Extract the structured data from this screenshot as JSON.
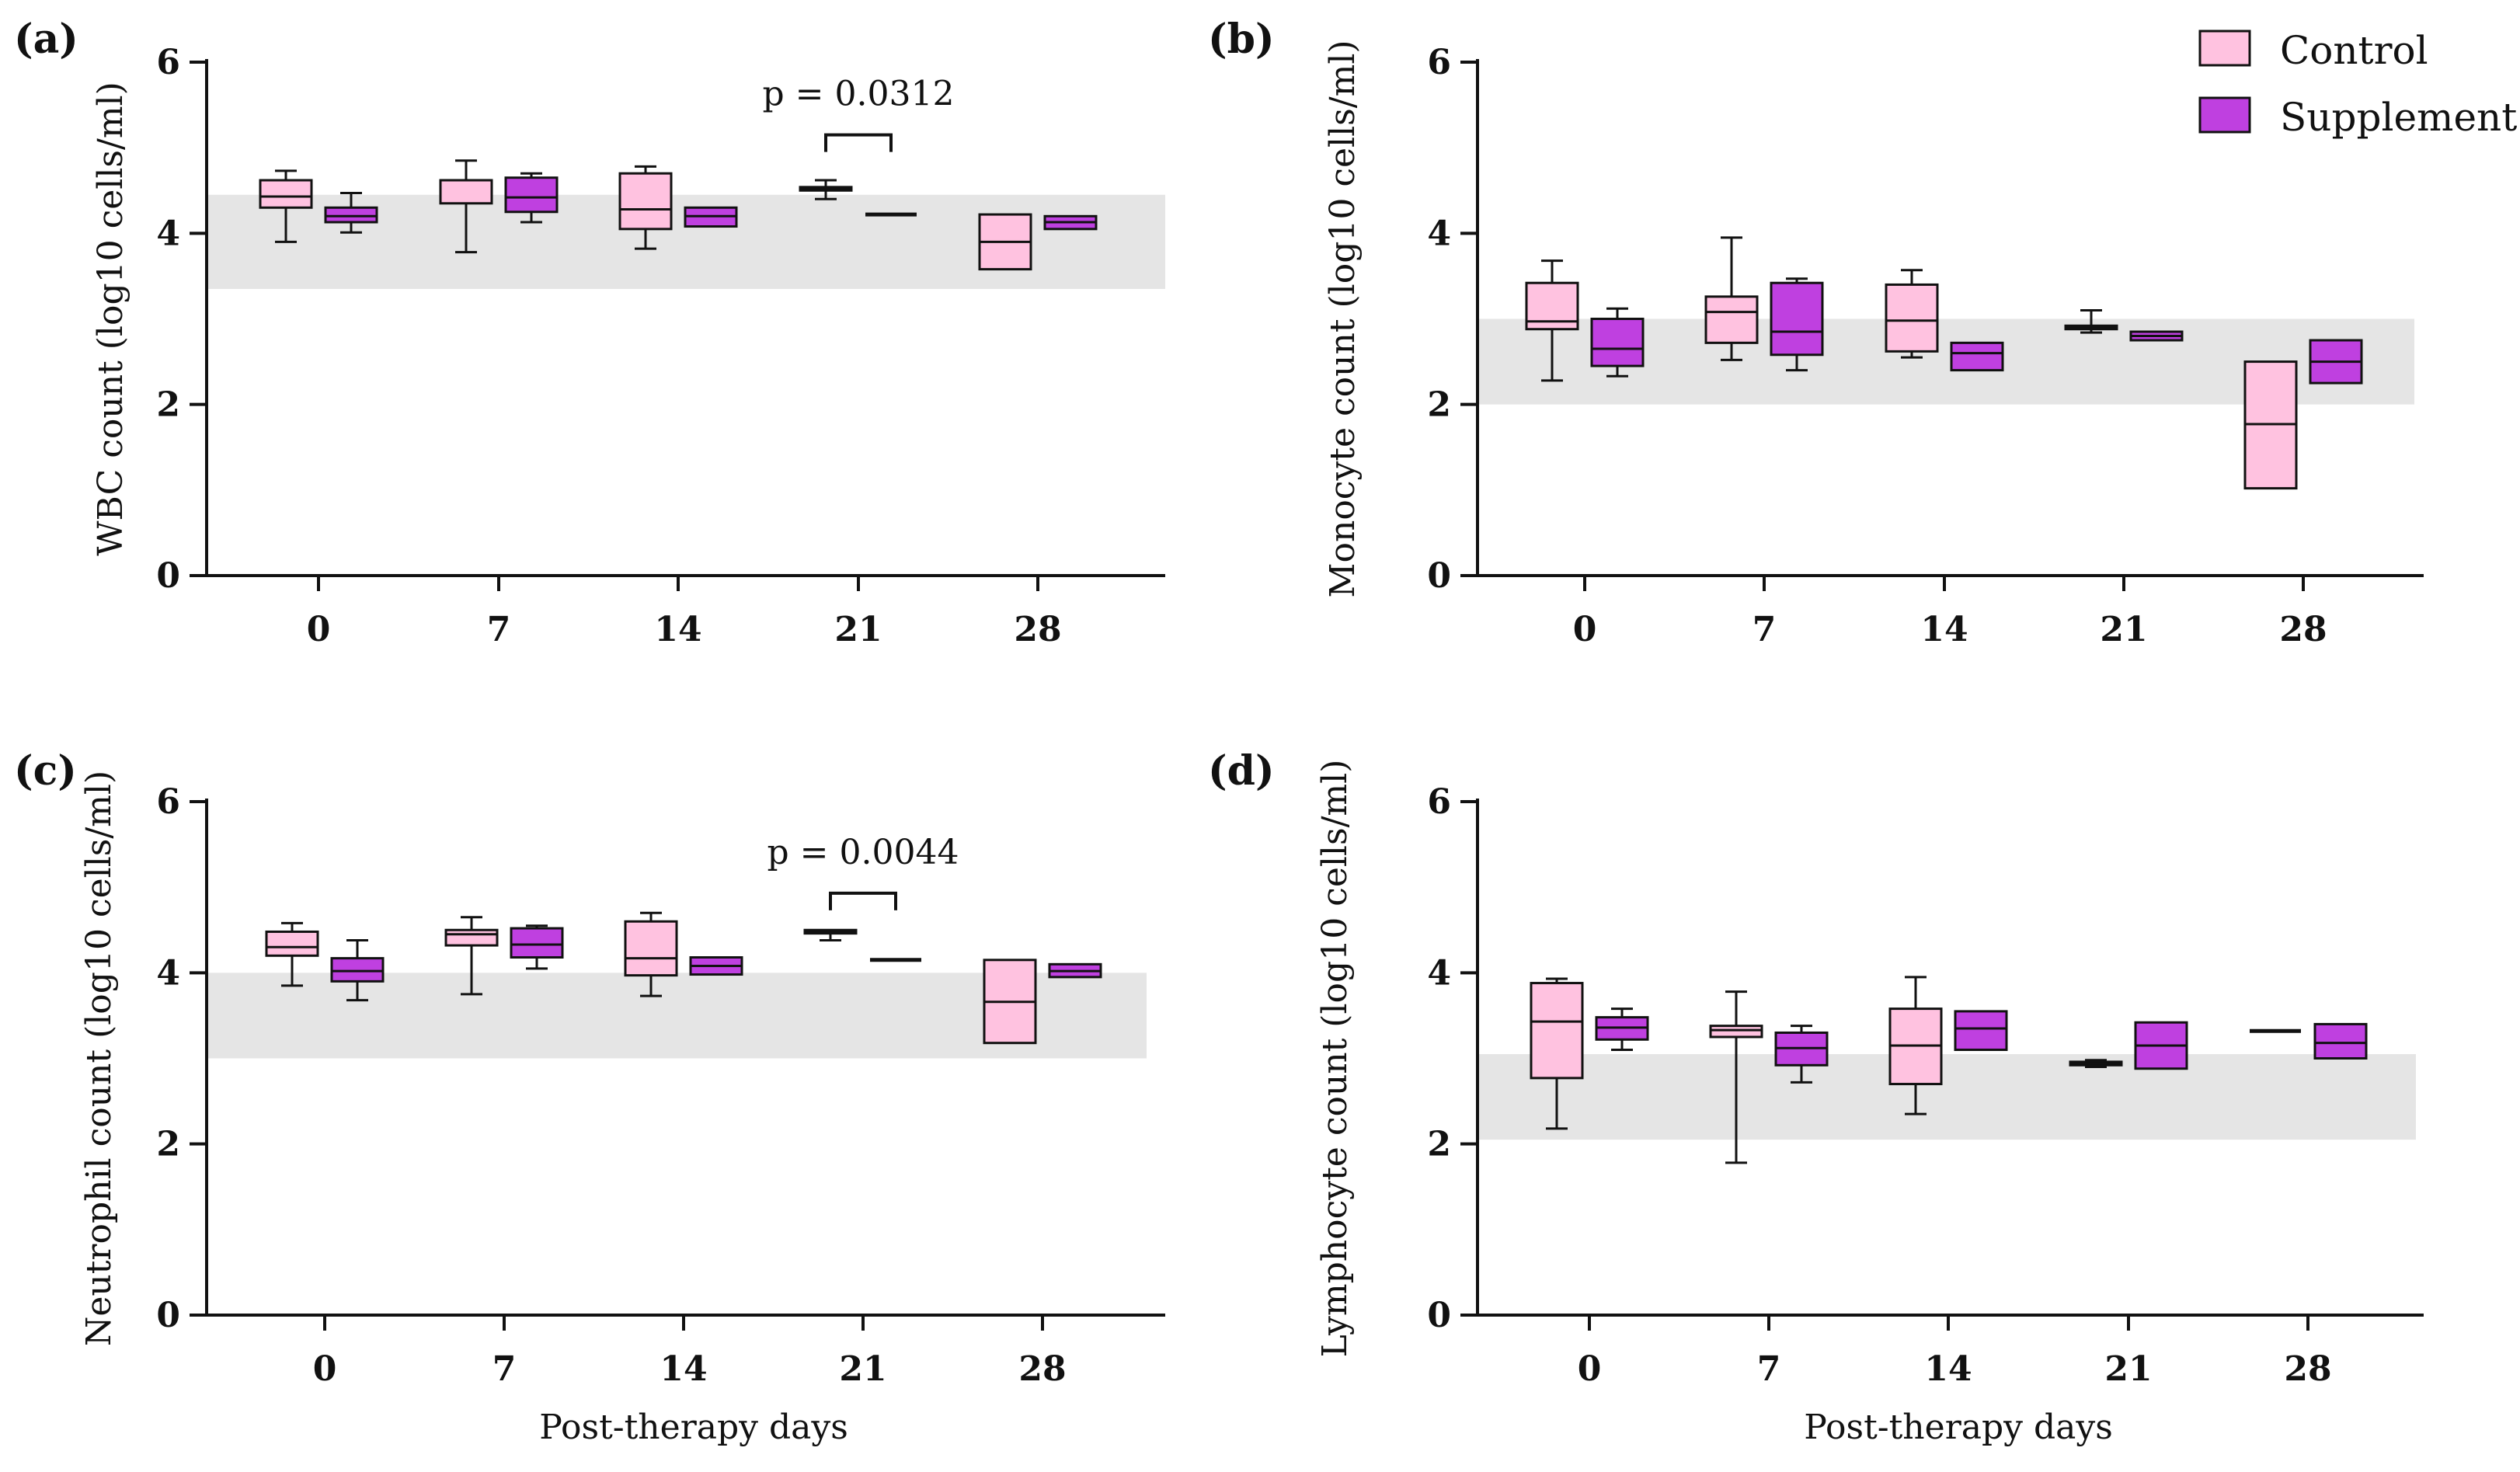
{
  "chart_data": [
    {
      "type": "box",
      "panel_label": "(a)",
      "ylabel": "WBC count (log10 cells/ml)",
      "xlabel": "",
      "categories": [
        "0",
        "7",
        "14",
        "21",
        "28"
      ],
      "ylim": [
        0,
        6
      ],
      "yticks": [
        "0",
        "2",
        "4",
        "6"
      ],
      "reference_band": [
        3.35,
        4.45
      ],
      "series": [
        {
          "name": "Control",
          "color": "#ffc2e0",
          "boxes": [
            {
              "min": 3.9,
              "q1": 4.3,
              "median": 4.43,
              "q3": 4.62,
              "max": 4.73
            },
            {
              "min": 3.78,
              "q1": 4.35,
              "median": 4.62,
              "q3": 4.62,
              "max": 4.85
            },
            {
              "min": 3.82,
              "q1": 4.05,
              "median": 4.28,
              "q3": 4.7,
              "max": 4.78
            },
            {
              "min": 4.4,
              "q1": 4.5,
              "median": 4.52,
              "q3": 4.54,
              "max": 4.62
            },
            {
              "min": 3.58,
              "q1": 3.58,
              "median": 3.9,
              "q3": 4.22,
              "max": 4.22
            }
          ]
        },
        {
          "name": "Supplement",
          "color": "#bf40e0",
          "boxes": [
            {
              "min": 4.01,
              "q1": 4.13,
              "median": 4.2,
              "q3": 4.3,
              "max": 4.47
            },
            {
              "min": 4.13,
              "q1": 4.25,
              "median": 4.42,
              "q3": 4.65,
              "max": 4.7
            },
            {
              "min": 4.08,
              "q1": 4.08,
              "median": 4.2,
              "q3": 4.3,
              "max": 4.3
            },
            {
              "min": 4.22,
              "q1": 4.22,
              "median": 4.22,
              "q3": 4.22,
              "max": 4.22
            },
            {
              "min": 4.05,
              "q1": 4.05,
              "median": 4.13,
              "q3": 4.2,
              "max": 4.2
            }
          ]
        }
      ],
      "annotation": {
        "category": "21",
        "text": "p = 0.0312",
        "y": 5.15
      }
    },
    {
      "type": "box",
      "panel_label": "(b)",
      "ylabel": "Monocyte count (log10 cells/ml)",
      "xlabel": "",
      "categories": [
        "0",
        "7",
        "14",
        "21",
        "28"
      ],
      "ylim": [
        0,
        6
      ],
      "yticks": [
        "0",
        "2",
        "4",
        "6"
      ],
      "reference_band": [
        2.0,
        3.0
      ],
      "series": [
        {
          "name": "Control",
          "color": "#ffc2e0",
          "boxes": [
            {
              "min": 2.28,
              "q1": 2.88,
              "median": 2.97,
              "q3": 3.42,
              "max": 3.68
            },
            {
              "min": 2.52,
              "q1": 2.72,
              "median": 3.08,
              "q3": 3.26,
              "max": 3.95
            },
            {
              "min": 2.55,
              "q1": 2.62,
              "median": 2.98,
              "q3": 3.4,
              "max": 3.57
            },
            {
              "min": 2.84,
              "q1": 2.88,
              "median": 2.9,
              "q3": 2.92,
              "max": 3.1
            },
            {
              "min": 1.02,
              "q1": 1.02,
              "median": 1.77,
              "q3": 2.5,
              "max": 2.5
            }
          ]
        },
        {
          "name": "Supplement",
          "color": "#bf40e0",
          "boxes": [
            {
              "min": 2.33,
              "q1": 2.45,
              "median": 2.65,
              "q3": 3.0,
              "max": 3.12
            },
            {
              "min": 2.4,
              "q1": 2.58,
              "median": 2.85,
              "q3": 3.42,
              "max": 3.47
            },
            {
              "min": 2.4,
              "q1": 2.4,
              "median": 2.6,
              "q3": 2.72,
              "max": 2.72
            },
            {
              "min": 2.75,
              "q1": 2.75,
              "median": 2.8,
              "q3": 2.85,
              "max": 2.85
            },
            {
              "min": 2.25,
              "q1": 2.25,
              "median": 2.5,
              "q3": 2.75,
              "max": 2.75
            }
          ]
        }
      ]
    },
    {
      "type": "box",
      "panel_label": "(c)",
      "ylabel": "Neutrophil count (log10 cells/ml)",
      "xlabel": "Post-therapy days",
      "categories": [
        "0",
        "7",
        "14",
        "21",
        "28"
      ],
      "ylim": [
        0,
        6
      ],
      "yticks": [
        "0",
        "2",
        "4",
        "6"
      ],
      "reference_band": [
        3.0,
        4.0
      ],
      "series": [
        {
          "name": "Control",
          "color": "#ffc2e0",
          "boxes": [
            {
              "min": 3.85,
              "q1": 4.2,
              "median": 4.3,
              "q3": 4.48,
              "max": 4.58
            },
            {
              "min": 3.75,
              "q1": 4.32,
              "median": 4.45,
              "q3": 4.5,
              "max": 4.65
            },
            {
              "min": 3.73,
              "q1": 3.97,
              "median": 4.17,
              "q3": 4.6,
              "max": 4.7
            },
            {
              "min": 4.38,
              "q1": 4.46,
              "median": 4.48,
              "q3": 4.5,
              "max": 4.5
            },
            {
              "min": 3.18,
              "q1": 3.18,
              "median": 3.66,
              "q3": 4.15,
              "max": 4.15
            }
          ]
        },
        {
          "name": "Supplement",
          "color": "#bf40e0",
          "boxes": [
            {
              "min": 3.68,
              "q1": 3.9,
              "median": 4.02,
              "q3": 4.17,
              "max": 4.38
            },
            {
              "min": 4.05,
              "q1": 4.18,
              "median": 4.33,
              "q3": 4.52,
              "max": 4.55
            },
            {
              "min": 3.98,
              "q1": 3.98,
              "median": 4.08,
              "q3": 4.18,
              "max": 4.18
            },
            {
              "min": 4.15,
              "q1": 4.15,
              "median": 4.15,
              "q3": 4.15,
              "max": 4.15
            },
            {
              "min": 3.95,
              "q1": 3.95,
              "median": 4.02,
              "q3": 4.1,
              "max": 4.1
            }
          ]
        }
      ],
      "annotation": {
        "category": "21",
        "text": "p = 0.0044",
        "y": 4.93
      }
    },
    {
      "type": "box",
      "panel_label": "(d)",
      "ylabel": "Lymphocyte count (log10 cells/ml)",
      "xlabel": "Post-therapy days",
      "categories": [
        "0",
        "7",
        "14",
        "21",
        "28"
      ],
      "ylim": [
        0,
        6
      ],
      "yticks": [
        "0",
        "2",
        "4",
        "6"
      ],
      "reference_band": [
        2.05,
        3.05
      ],
      "series": [
        {
          "name": "Control",
          "color": "#ffc2e0",
          "boxes": [
            {
              "min": 2.18,
              "q1": 2.77,
              "median": 3.43,
              "q3": 3.88,
              "max": 3.93
            },
            {
              "min": 1.78,
              "q1": 3.25,
              "median": 3.33,
              "q3": 3.38,
              "max": 3.78
            },
            {
              "min": 2.35,
              "q1": 2.7,
              "median": 3.15,
              "q3": 3.58,
              "max": 3.95
            },
            {
              "min": 2.9,
              "q1": 2.92,
              "median": 2.94,
              "q3": 2.96,
              "max": 2.98
            },
            {
              "min": 3.32,
              "q1": 3.32,
              "median": 3.32,
              "q3": 3.32,
              "max": 3.32
            }
          ]
        },
        {
          "name": "Supplement",
          "color": "#bf40e0",
          "boxes": [
            {
              "min": 3.1,
              "q1": 3.22,
              "median": 3.36,
              "q3": 3.48,
              "max": 3.58
            },
            {
              "min": 2.72,
              "q1": 2.92,
              "median": 3.12,
              "q3": 3.3,
              "max": 3.38
            },
            {
              "min": 3.1,
              "q1": 3.1,
              "median": 3.35,
              "q3": 3.55,
              "max": 3.55
            },
            {
              "min": 2.88,
              "q1": 2.88,
              "median": 3.15,
              "q3": 3.42,
              "max": 3.42
            },
            {
              "min": 3.0,
              "q1": 3.0,
              "median": 3.18,
              "q3": 3.4,
              "max": 3.4
            }
          ]
        }
      ]
    }
  ],
  "legend": [
    {
      "label": "Control",
      "color": "#ffc2e0"
    },
    {
      "label": "Supplement",
      "color": "#bf40e0"
    }
  ],
  "styles": {
    "band_color": "#e5e5e5",
    "stroke": "#111111"
  }
}
